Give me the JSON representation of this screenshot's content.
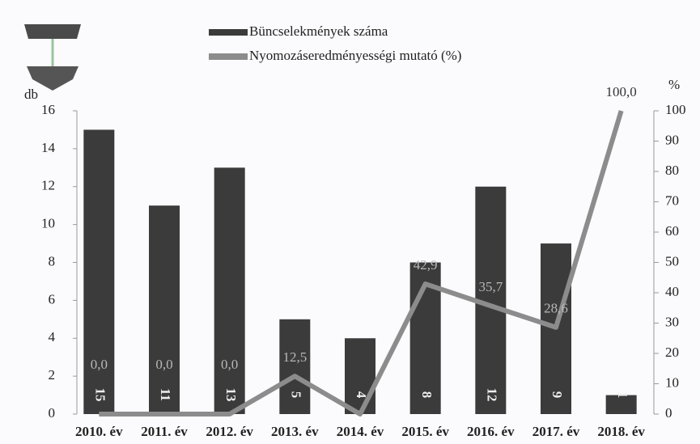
{
  "chart_data": {
    "type": "bar",
    "categories": [
      "2010. év",
      "2011. év",
      "2012. év",
      "2013. év",
      "2014. év",
      "2015. év",
      "2016. év",
      "2017. év",
      "2018. év"
    ],
    "ylabel": "db",
    "y2label": "%",
    "ylim": [
      0,
      16
    ],
    "yticks": [
      0,
      2,
      4,
      6,
      8,
      10,
      12,
      14,
      16
    ],
    "y2lim": [
      0,
      100
    ],
    "y2ticks": [
      0,
      10,
      20,
      30,
      40,
      50,
      60,
      70,
      80,
      90,
      100
    ],
    "legend": "top",
    "series": [
      {
        "name": "Büncselekmények száma",
        "type": "bar",
        "color": "#3b3b3b",
        "values": [
          15,
          11,
          13,
          5,
          4,
          8,
          12,
          9,
          1
        ]
      },
      {
        "name": "Nyomozáseredményességi mutató (%)",
        "type": "line",
        "axis": "y2",
        "color": "#8c8c8c",
        "values": [
          0,
          0,
          0,
          12.5,
          0,
          42.9,
          35.7,
          28.6,
          100
        ],
        "value_labels": [
          "0,0",
          "0,0",
          "0,0",
          "12,5",
          null,
          "42,9",
          "35,7",
          "28,6",
          "100,0"
        ]
      }
    ]
  }
}
